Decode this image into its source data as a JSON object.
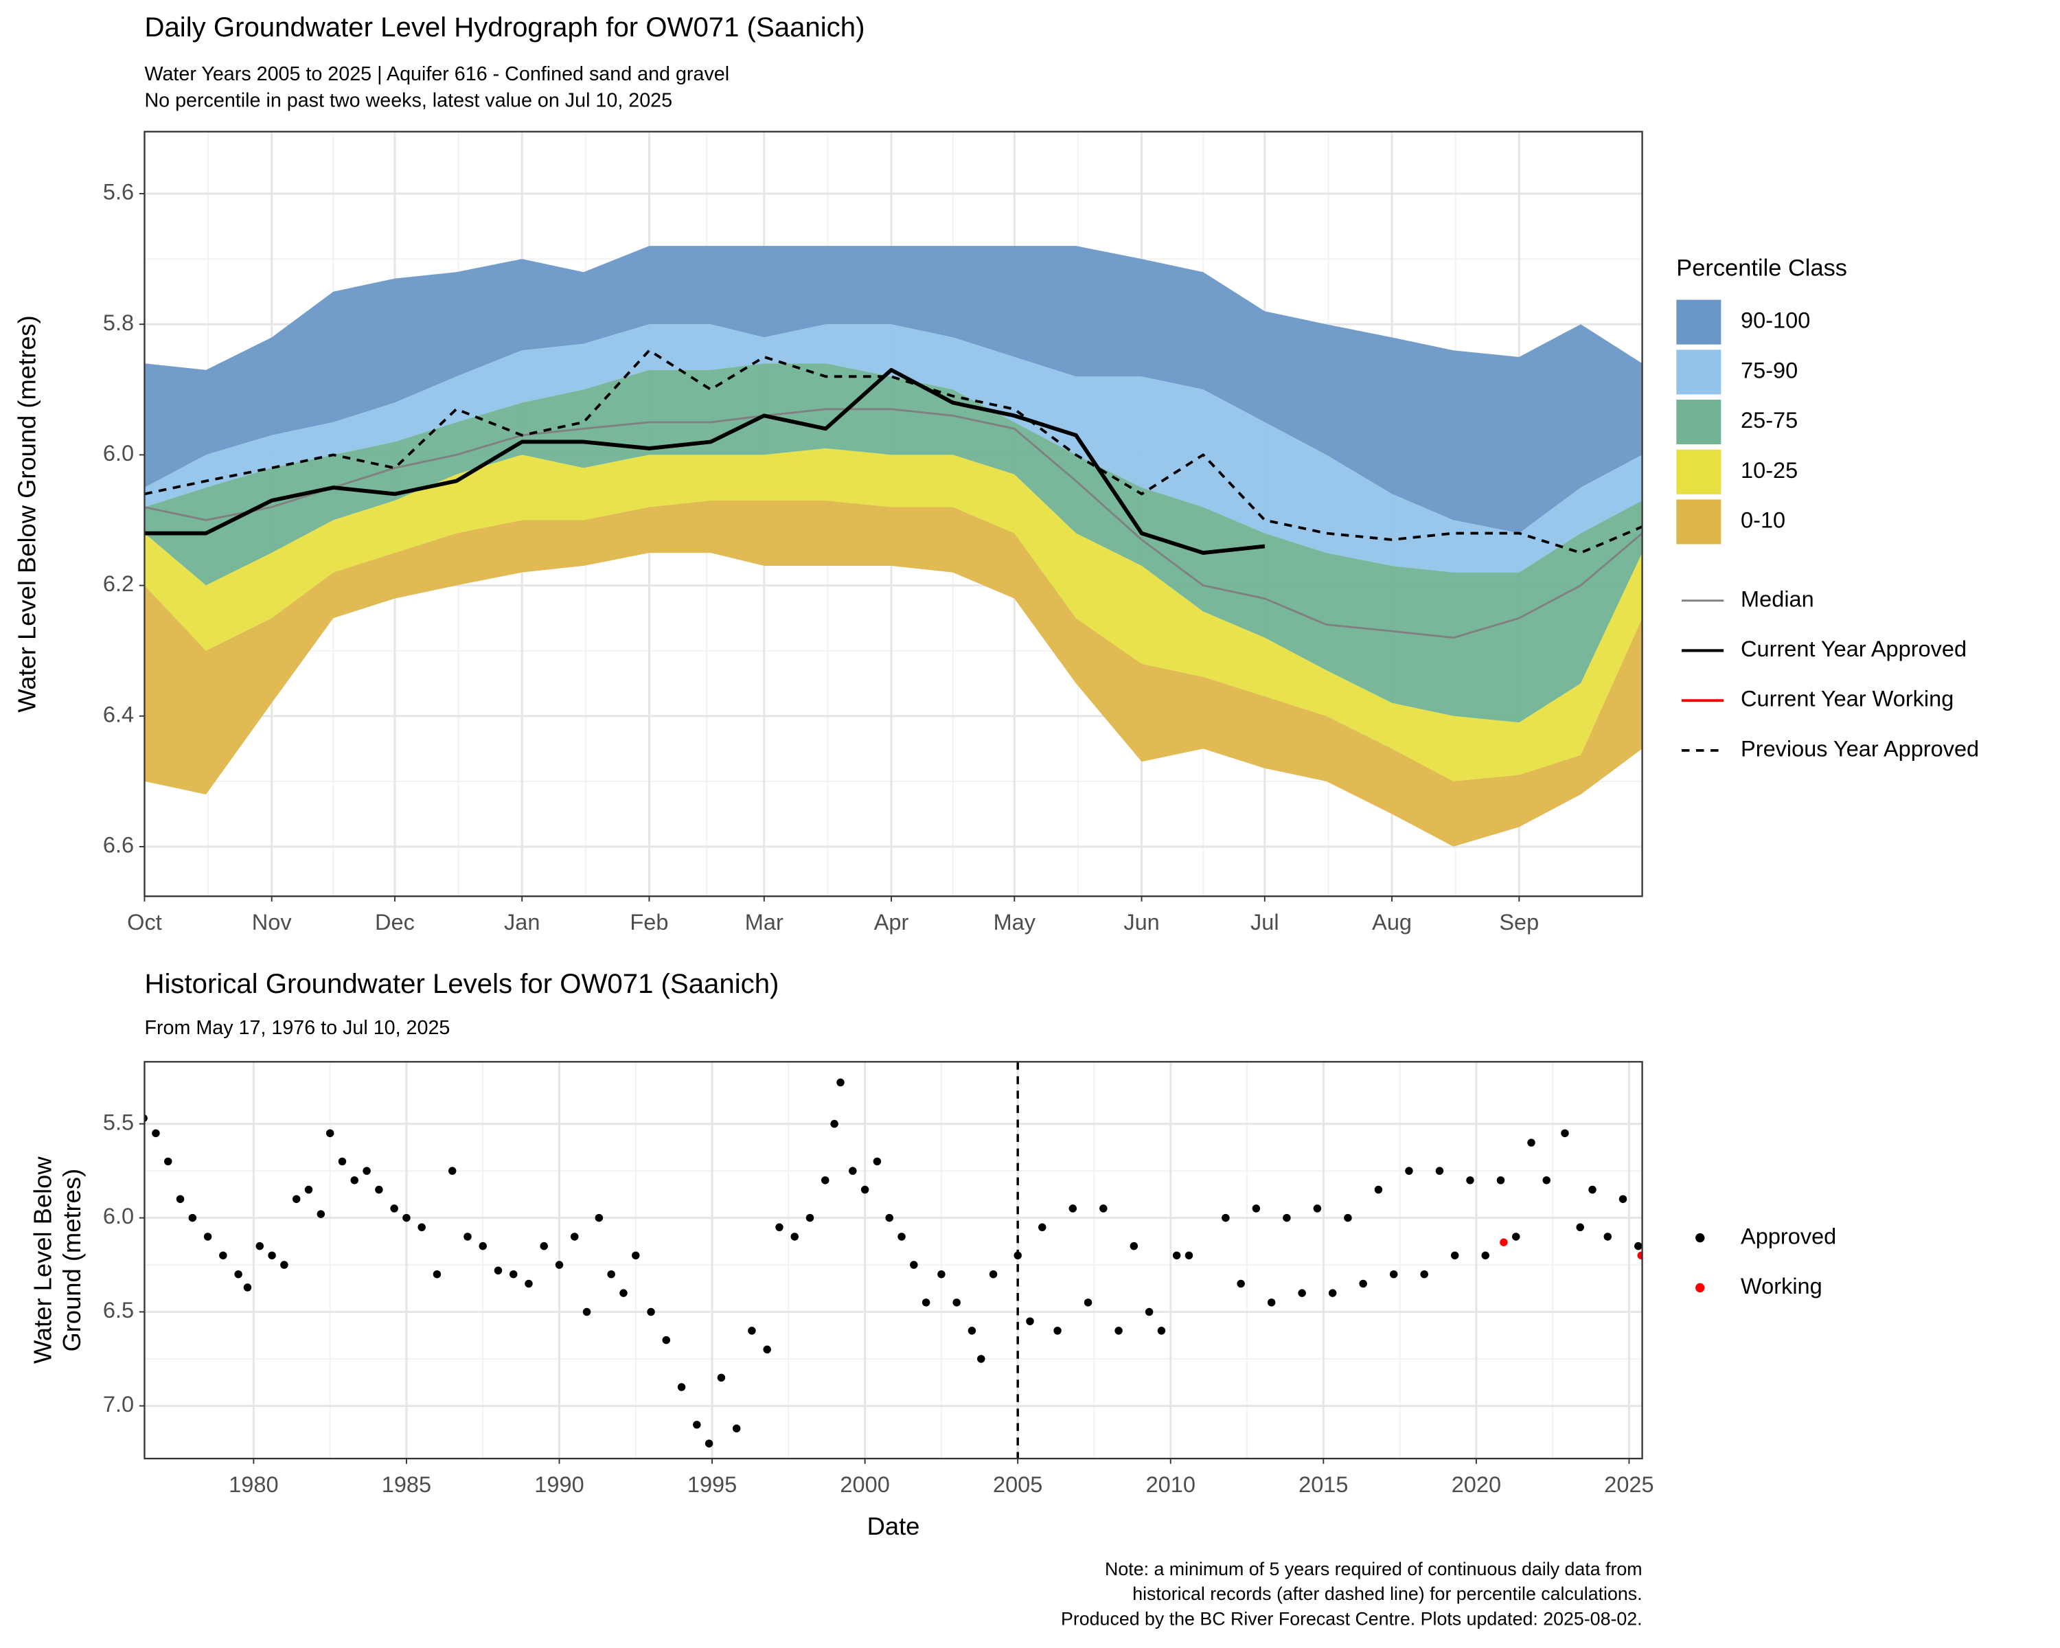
{
  "chart_data": [
    {
      "type": "area",
      "title": "Daily Groundwater Level Hydrograph for OW071 (Saanich)",
      "subtitle": [
        "Water Years 2005 to 2025 | Aquifer 616 - Confined sand and gravel",
        "No percentile in past two weeks, latest value on Jul 10, 2025"
      ],
      "ylabel": "Water Level Below Ground (metres)",
      "x": [
        0,
        15,
        31,
        46,
        61,
        76,
        92,
        107,
        123,
        138,
        151,
        166,
        182,
        197,
        212,
        227,
        243,
        258,
        273,
        288,
        304,
        319,
        335,
        350,
        365
      ],
      "xlim": [
        0,
        365
      ],
      "xticks": [
        {
          "value": 0,
          "label": "Oct"
        },
        {
          "value": 31,
          "label": "Nov"
        },
        {
          "value": 61,
          "label": "Dec"
        },
        {
          "value": 92,
          "label": "Jan"
        },
        {
          "value": 123,
          "label": "Feb"
        },
        {
          "value": 151,
          "label": "Mar"
        },
        {
          "value": 182,
          "label": "Apr"
        },
        {
          "value": 212,
          "label": "May"
        },
        {
          "value": 243,
          "label": "Jun"
        },
        {
          "value": 273,
          "label": "Jul"
        },
        {
          "value": 304,
          "label": "Aug"
        },
        {
          "value": 335,
          "label": "Sep"
        }
      ],
      "ylim": [
        5.505,
        6.676
      ],
      "inverted": true,
      "grid": true,
      "yticks": [
        5.6,
        5.8,
        {
          "value": 6,
          "label": "6.0"
        },
        6.2,
        6.4,
        6.6
      ],
      "legend_title": "Percentile Class",
      "bands": [
        {
          "name": "90-100",
          "color": "#6a97c6",
          "top": [
            5.86,
            5.87,
            5.82,
            5.75,
            5.73,
            5.72,
            5.7,
            5.72,
            5.68,
            5.68,
            5.68,
            5.68,
            5.68,
            5.68,
            5.68,
            5.68,
            5.7,
            5.72,
            5.78,
            5.8,
            5.82,
            5.84,
            5.85,
            5.8,
            5.86
          ],
          "bottom": [
            6.05,
            6.0,
            5.97,
            5.95,
            5.92,
            5.88,
            5.84,
            5.83,
            5.8,
            5.8,
            5.82,
            5.8,
            5.8,
            5.82,
            5.85,
            5.88,
            5.88,
            5.9,
            5.95,
            6.0,
            6.06,
            6.1,
            6.12,
            6.05,
            6.0
          ]
        },
        {
          "name": "75-90",
          "color": "#93c3ea",
          "top": [
            6.05,
            6.0,
            5.97,
            5.95,
            5.92,
            5.88,
            5.84,
            5.83,
            5.8,
            5.8,
            5.82,
            5.8,
            5.8,
            5.82,
            5.85,
            5.88,
            5.88,
            5.9,
            5.95,
            6.0,
            6.06,
            6.1,
            6.12,
            6.05,
            6.0
          ],
          "bottom": [
            6.08,
            6.05,
            6.02,
            6.0,
            5.98,
            5.95,
            5.92,
            5.9,
            5.87,
            5.87,
            5.86,
            5.86,
            5.88,
            5.9,
            5.95,
            6.0,
            6.05,
            6.08,
            6.12,
            6.15,
            6.17,
            6.18,
            6.18,
            6.12,
            6.07
          ]
        },
        {
          "name": "25-75",
          "color": "#72b396",
          "top": [
            6.08,
            6.05,
            6.02,
            6.0,
            5.98,
            5.95,
            5.92,
            5.9,
            5.87,
            5.87,
            5.86,
            5.86,
            5.88,
            5.9,
            5.95,
            6.0,
            6.05,
            6.08,
            6.12,
            6.15,
            6.17,
            6.18,
            6.18,
            6.12,
            6.07
          ],
          "bottom": [
            6.12,
            6.2,
            6.15,
            6.1,
            6.07,
            6.03,
            6.0,
            6.02,
            6.0,
            6.0,
            6.0,
            5.99,
            6.0,
            6.0,
            6.03,
            6.12,
            6.17,
            6.24,
            6.28,
            6.33,
            6.38,
            6.4,
            6.41,
            6.35,
            6.15
          ]
        },
        {
          "name": "10-25",
          "color": "#e7e042",
          "top": [
            6.12,
            6.2,
            6.15,
            6.1,
            6.07,
            6.03,
            6.0,
            6.02,
            6.0,
            6.0,
            6.0,
            5.99,
            6.0,
            6.0,
            6.03,
            6.12,
            6.17,
            6.24,
            6.28,
            6.33,
            6.38,
            6.4,
            6.41,
            6.35,
            6.15
          ],
          "bottom": [
            6.2,
            6.3,
            6.25,
            6.18,
            6.15,
            6.12,
            6.1,
            6.1,
            6.08,
            6.07,
            6.07,
            6.07,
            6.08,
            6.08,
            6.12,
            6.25,
            6.32,
            6.34,
            6.37,
            6.4,
            6.45,
            6.5,
            6.49,
            6.46,
            6.25
          ]
        },
        {
          "name": "0-10",
          "color": "#dfb64a",
          "top": [
            6.2,
            6.3,
            6.25,
            6.18,
            6.15,
            6.12,
            6.1,
            6.1,
            6.08,
            6.07,
            6.07,
            6.07,
            6.08,
            6.08,
            6.12,
            6.25,
            6.32,
            6.34,
            6.37,
            6.4,
            6.45,
            6.5,
            6.49,
            6.46,
            6.25
          ],
          "bottom": [
            6.5,
            6.52,
            6.38,
            6.25,
            6.22,
            6.2,
            6.18,
            6.17,
            6.15,
            6.15,
            6.17,
            6.17,
            6.17,
            6.18,
            6.22,
            6.35,
            6.47,
            6.45,
            6.48,
            6.5,
            6.55,
            6.6,
            6.57,
            6.52,
            6.45
          ]
        }
      ],
      "series": [
        {
          "name": "Median",
          "color": "#808080",
          "width": 1.5,
          "dash": false,
          "values": [
            6.08,
            6.1,
            6.08,
            6.05,
            6.02,
            6.0,
            5.97,
            5.96,
            5.95,
            5.95,
            5.94,
            5.93,
            5.93,
            5.94,
            5.96,
            6.04,
            6.13,
            6.2,
            6.22,
            6.26,
            6.27,
            6.28,
            6.25,
            6.2,
            6.12
          ]
        },
        {
          "name": "Current Year Approved",
          "color": "#000000",
          "width": 3,
          "dash": false,
          "values": [
            6.12,
            6.12,
            6.07,
            6.05,
            6.06,
            6.04,
            5.98,
            5.98,
            5.99,
            5.98,
            5.94,
            5.96,
            5.87,
            5.92,
            5.94,
            5.97,
            6.12,
            6.15,
            6.14,
            null,
            null,
            null,
            null,
            null,
            null
          ]
        },
        {
          "name": "Current Year Working",
          "color": "#ff0000",
          "width": 2,
          "dash": false,
          "values": [
            null,
            null,
            null,
            null,
            null,
            null,
            null,
            null,
            null,
            null,
            null,
            null,
            null,
            null,
            null,
            null,
            null,
            null,
            null,
            null,
            null,
            null,
            null,
            null,
            null
          ]
        },
        {
          "name": "Previous Year Approved",
          "color": "#000000",
          "width": 2,
          "dash": true,
          "values": [
            6.06,
            6.04,
            6.02,
            6.0,
            6.02,
            5.93,
            5.97,
            5.95,
            5.84,
            5.9,
            5.85,
            5.88,
            5.88,
            5.91,
            5.93,
            6.0,
            6.06,
            6.0,
            6.1,
            6.12,
            6.13,
            6.12,
            6.12,
            6.15,
            6.11
          ]
        }
      ]
    },
    {
      "type": "scatter",
      "title": "Historical Groundwater Levels for OW071 (Saanich)",
      "subtitle": [
        "From May 17, 1976 to Jul 10, 2025"
      ],
      "xlabel": "Date",
      "ylabel": [
        "Water Level Below",
        "Ground (metres)"
      ],
      "xlim": [
        1976.43,
        2025.43
      ],
      "xticks": [
        1980,
        1985,
        1990,
        1995,
        2000,
        2005,
        2010,
        2015,
        2020,
        2025
      ],
      "ylim": [
        5.17,
        7.28
      ],
      "inverted": true,
      "grid": true,
      "yticks": [
        5.5,
        {
          "value": 6,
          "label": "6.0"
        },
        6.5,
        {
          "value": 7,
          "label": "7.0"
        }
      ],
      "vline_x": 2005,
      "series": [
        {
          "name": "Approved",
          "color": "#000000",
          "x": [
            1976.4,
            1976.8,
            1977.2,
            1977.6,
            1978,
            1978.5,
            1979,
            1979.5,
            1979.8,
            1980.2,
            1980.6,
            1981,
            1981.4,
            1981.8,
            1982.2,
            1982.5,
            1982.9,
            1983.3,
            1983.7,
            1984.1,
            1984.6,
            1985,
            1985.5,
            1986,
            1986.5,
            1987,
            1987.5,
            1988,
            1988.5,
            1989,
            1989.5,
            1990,
            1990.5,
            1990.9,
            1991.3,
            1991.7,
            1992.1,
            1992.5,
            1993,
            1993.5,
            1994,
            1994.5,
            1994.9,
            1995.3,
            1995.8,
            1996.3,
            1996.8,
            1997.2,
            1997.7,
            1998.2,
            1998.7,
            1999,
            1999.2,
            1999.6,
            2000,
            2000.4,
            2000.8,
            2001.2,
            2001.6,
            2002,
            2002.5,
            2003,
            2003.5,
            2003.8,
            2004.2,
            2005,
            2005.4,
            2005.8,
            2006.3,
            2006.8,
            2007.3,
            2007.8,
            2008.3,
            2008.8,
            2009.3,
            2009.7,
            2010.2,
            2010.6,
            2011.8,
            2012.3,
            2012.8,
            2013.3,
            2013.8,
            2014.3,
            2014.8,
            2015.3,
            2015.8,
            2016.3,
            2016.8,
            2017.3,
            2017.8,
            2018.3,
            2018.8,
            2019.3,
            2019.8,
            2020.3,
            2020.8,
            2021.3,
            2021.8,
            2022.3,
            2022.9,
            2023.4,
            2023.8,
            2024.3,
            2024.8,
            2025.3
          ],
          "values": [
            5.47,
            5.55,
            5.7,
            5.9,
            6.0,
            6.1,
            6.2,
            6.3,
            6.37,
            6.15,
            6.2,
            6.25,
            5.9,
            5.85,
            5.98,
            5.55,
            5.7,
            5.8,
            5.75,
            5.85,
            5.95,
            6.0,
            6.05,
            6.3,
            5.75,
            6.1,
            6.15,
            6.28,
            6.3,
            6.35,
            6.15,
            6.25,
            6.1,
            6.5,
            6.0,
            6.3,
            6.4,
            6.2,
            6.5,
            6.65,
            6.9,
            7.1,
            7.2,
            6.85,
            7.12,
            6.6,
            6.7,
            6.05,
            6.1,
            6.0,
            5.8,
            5.5,
            5.28,
            5.75,
            5.85,
            5.7,
            6.0,
            6.1,
            6.25,
            6.45,
            6.3,
            6.45,
            6.6,
            6.75,
            6.3,
            6.2,
            6.55,
            6.05,
            6.6,
            5.95,
            6.45,
            5.95,
            6.6,
            6.15,
            6.5,
            6.6,
            6.2,
            6.2,
            6.0,
            6.35,
            5.95,
            6.45,
            6.0,
            6.4,
            5.95,
            6.4,
            6.0,
            6.35,
            5.85,
            6.3,
            5.75,
            6.3,
            5.75,
            6.2,
            5.8,
            6.2,
            5.8,
            6.1,
            5.6,
            5.8,
            5.55,
            6.05,
            5.85,
            6.1,
            5.9,
            6.15
          ]
        },
        {
          "name": "Working",
          "color": "#ff0000",
          "x": [
            2020.9,
            2025.4
          ],
          "values": [
            6.13,
            6.2
          ]
        }
      ],
      "note": [
        "Note: a minimum of 5 years required of continuous daily data from",
        "historical records (after dashed line) for percentile calculations.",
        "Produced by the BC River Forecast Centre. Plots updated: 2025-08-02."
      ]
    }
  ]
}
